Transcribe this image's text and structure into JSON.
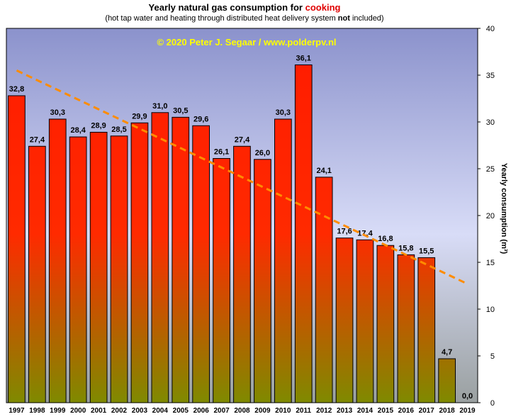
{
  "chart_data": {
    "type": "bar",
    "title_prefix": "Yearly natural gas consumption for",
    "title_highlight": "cooking",
    "subtitle_before": "(hot tap water and heating through distributed heat delivery system",
    "subtitle_bold": "not",
    "subtitle_after": "included)",
    "watermark": "© 2020 Peter J. Segaar / www.polderpv.nl",
    "ylabel": "Yearly consumption (m³)",
    "ylim": [
      0,
      40
    ],
    "yticks": [
      0,
      5,
      10,
      15,
      20,
      25,
      30,
      35,
      40
    ],
    "categories": [
      "1997",
      "1998",
      "1999",
      "2000",
      "2001",
      "2002",
      "2003",
      "2004",
      "2005",
      "2006",
      "2007",
      "2008",
      "2009",
      "2010",
      "2011",
      "2012",
      "2013",
      "2014",
      "2015",
      "2016",
      "2017",
      "2018",
      "2019"
    ],
    "values": [
      32.8,
      27.4,
      30.3,
      28.4,
      28.9,
      28.5,
      29.9,
      31.0,
      30.5,
      29.6,
      26.1,
      27.4,
      26.0,
      30.3,
      36.1,
      24.1,
      17.6,
      17.4,
      16.8,
      15.8,
      15.5,
      4.7,
      0.0
    ],
    "value_labels": [
      "32,8",
      "27,4",
      "30,3",
      "28,4",
      "28,9",
      "28,5",
      "29,9",
      "31,0",
      "30,5",
      "29,6",
      "26,1",
      "27,4",
      "26,0",
      "30,3",
      "36,1",
      "24,1",
      "17,6",
      "17,4",
      "16,8",
      "15,8",
      "15,5",
      "4,7",
      "0,0"
    ],
    "trendline": {
      "start": {
        "x": "1997",
        "y": 35.5
      },
      "end": {
        "x": "2019",
        "y": 12.7
      },
      "style": "dashed",
      "color": "#ff8c00"
    },
    "bar_gradient": {
      "top": "#ff1a00",
      "bottom": "#7f8a00"
    },
    "background_gradient": {
      "top": "#8b92cc",
      "middle": "#d8dcf7",
      "bottom": "#9aa0a0"
    },
    "grid": false,
    "legend": "none",
    "y_axis_side": "right"
  }
}
